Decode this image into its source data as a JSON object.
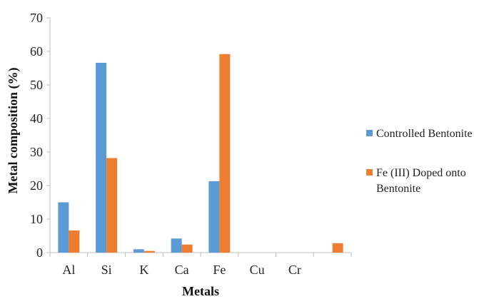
{
  "chart_data": {
    "type": "bar",
    "xlabel": "Metals",
    "ylabel": "Metal composition (%)",
    "ylim": [
      0,
      70
    ],
    "yticks": [
      0,
      10,
      20,
      30,
      40,
      50,
      60,
      70
    ],
    "categories": [
      "Al",
      "Si",
      "K",
      "Ca",
      "Fe",
      "Cu",
      "Cr",
      ""
    ],
    "series": [
      {
        "name": "Controlled Bentonite",
        "color": "#5B9BD5",
        "values": [
          15.0,
          56.6,
          1.0,
          4.2,
          21.3,
          0,
          0,
          0
        ]
      },
      {
        "name": "Fe (III) Doped onto Bentonite",
        "color": "#ED7D31",
        "values": [
          6.6,
          28.2,
          0.5,
          2.4,
          59.2,
          0,
          0,
          2.8
        ]
      }
    ],
    "grid": false,
    "legend": "right"
  }
}
